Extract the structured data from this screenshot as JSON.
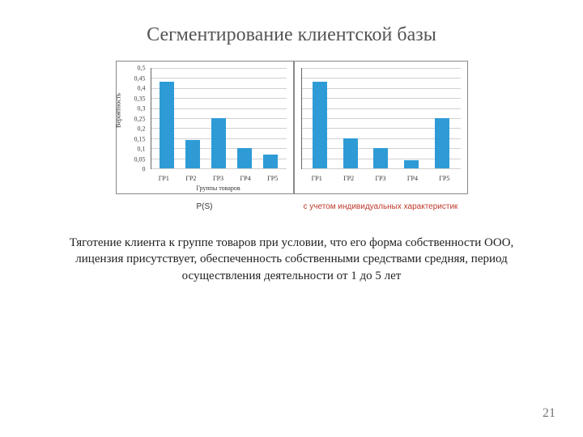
{
  "title": "Сегментирование клиентской базы",
  "chart_left": {
    "type": "bar",
    "categories": [
      "ГР1",
      "ГР2",
      "ГР3",
      "ГР4",
      "ГР5"
    ],
    "values": [
      0.43,
      0.14,
      0.25,
      0.1,
      0.07
    ],
    "bar_color": "#2e9bd6",
    "ylim": [
      0,
      0.5
    ],
    "yticks": [
      0,
      0.05,
      0.1,
      0.15,
      0.2,
      0.25,
      0.3,
      0.35,
      0.4,
      0.45,
      0.5
    ],
    "ytick_labels": [
      "0",
      "0,05",
      "0,1",
      "0,15",
      "0,2",
      "0,25",
      "0,3",
      "0,35",
      "0,4",
      "0,45",
      "0,5"
    ],
    "ylabel": "Вероятность",
    "xlabel": "Группы товаров",
    "grid_color": "#d0d0d0",
    "border_color": "#888888",
    "background_color": "#ffffff",
    "tick_fontsize": 8,
    "caption": "P(S)"
  },
  "chart_right": {
    "type": "bar",
    "categories": [
      "ГР1",
      "ГР2",
      "ГР3",
      "ГР4",
      "ГР5"
    ],
    "values": [
      0.43,
      0.15,
      0.1,
      0.04,
      0.25
    ],
    "bar_color": "#2e9bd6",
    "ylim": [
      0,
      0.5
    ],
    "grid_color": "#d0d0d0",
    "border_color": "#888888",
    "background_color": "#ffffff",
    "tick_fontsize": 8,
    "caption": "с учетом индивидуальных характеристик",
    "caption_color": "#c0392b"
  },
  "description": "Тяготение клиента к группе товаров при условии, что его форма собственности ООО, лицензия присутствует, обеспеченность собственными средствами средняя, период осуществления деятельности от 1 до 5 лет",
  "page_number": "21"
}
